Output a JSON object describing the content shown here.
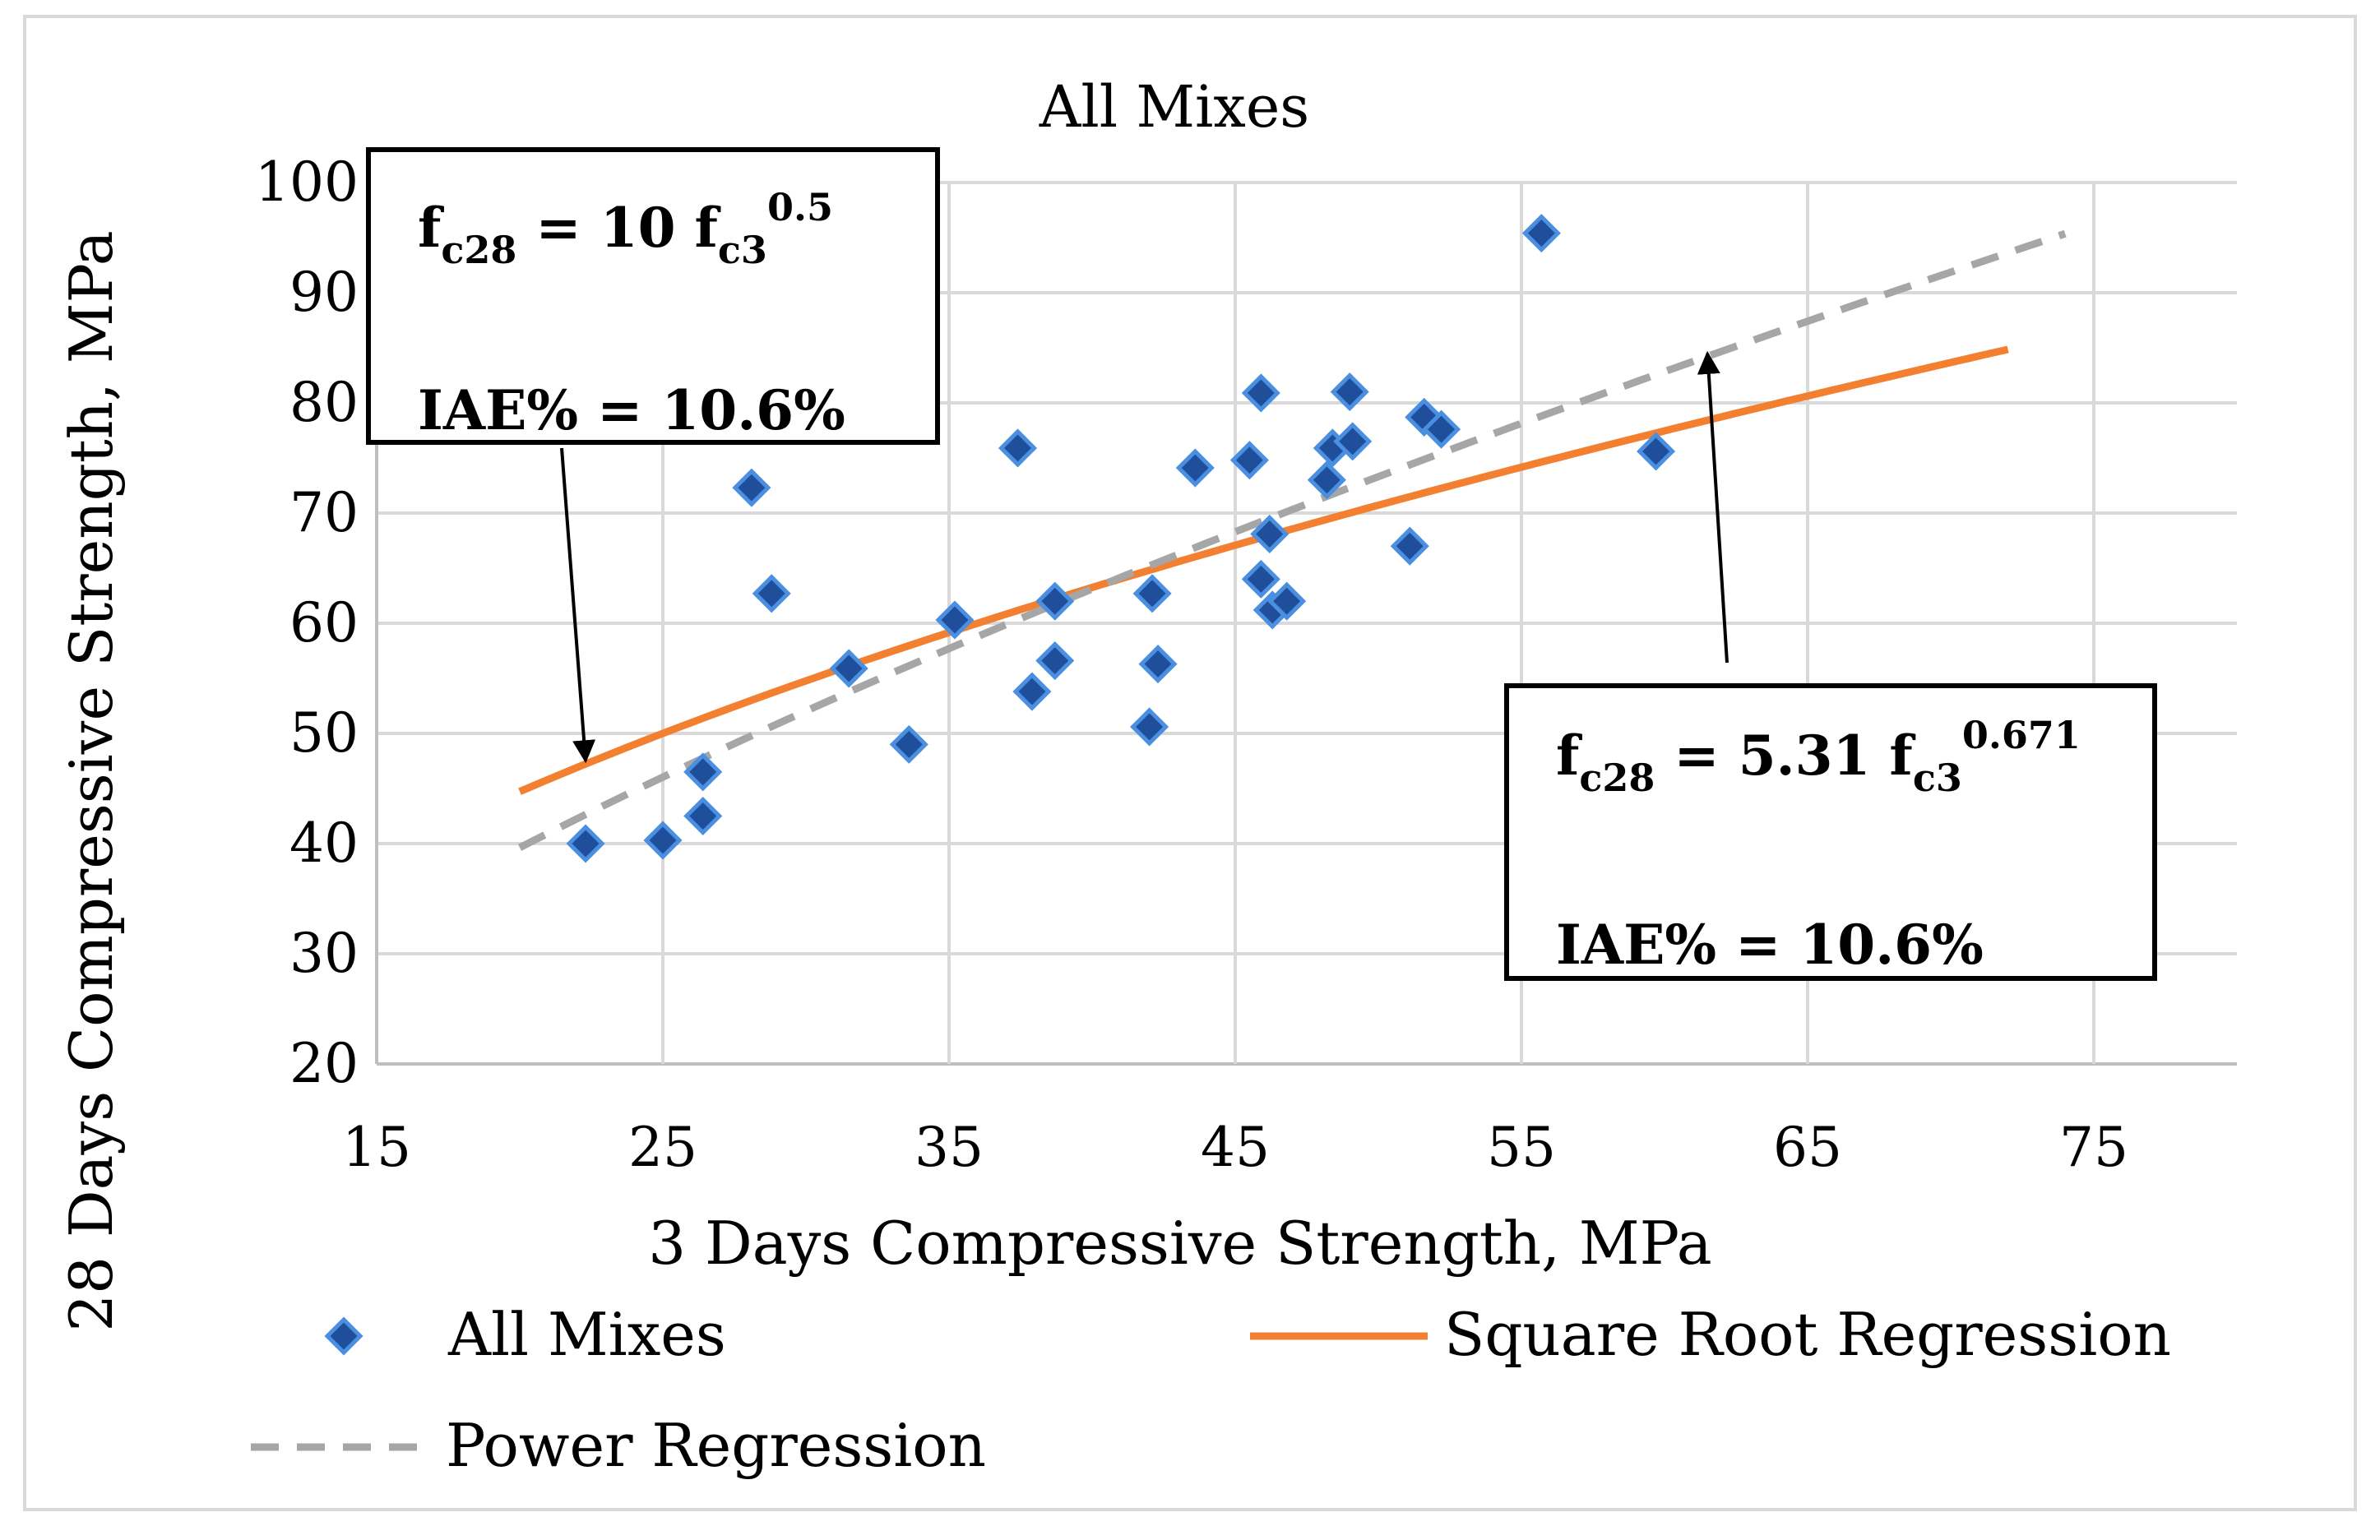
{
  "chart_data": {
    "type": "scatter",
    "title": "All Mixes",
    "xlabel": "3 Days Compressive Strength, MPa",
    "ylabel": "28 Days Compressive Strength, MPa",
    "xlim": [
      15,
      80
    ],
    "ylim": [
      20,
      100
    ],
    "xticks": [
      15,
      25,
      35,
      45,
      55,
      65,
      75
    ],
    "yticks": [
      20,
      30,
      40,
      50,
      60,
      70,
      80,
      90,
      100
    ],
    "grid": true,
    "series": [
      {
        "name": "All Mixes",
        "kind": "scatter",
        "color": "#2e5fa8",
        "points": [
          [
            22.3,
            40.0
          ],
          [
            25.0,
            40.3
          ],
          [
            26.4,
            42.5
          ],
          [
            26.4,
            46.5
          ],
          [
            28.1,
            72.3
          ],
          [
            28.8,
            62.7
          ],
          [
            31.5,
            55.9
          ],
          [
            33.6,
            49.0
          ],
          [
            35.2,
            60.3
          ],
          [
            37.4,
            75.9
          ],
          [
            37.9,
            53.8
          ],
          [
            38.7,
            62.0
          ],
          [
            38.7,
            56.6
          ],
          [
            42.0,
            50.6
          ],
          [
            42.1,
            62.7
          ],
          [
            42.3,
            56.3
          ],
          [
            43.6,
            74.1
          ],
          [
            45.5,
            74.8
          ],
          [
            45.9,
            80.9
          ],
          [
            45.9,
            64.0
          ],
          [
            46.2,
            68.1
          ],
          [
            46.3,
            61.2
          ],
          [
            46.8,
            62.0
          ],
          [
            48.2,
            73.0
          ],
          [
            48.4,
            75.9
          ],
          [
            49.0,
            81.0
          ],
          [
            49.1,
            76.5
          ],
          [
            51.1,
            67.0
          ],
          [
            51.6,
            78.7
          ],
          [
            52.2,
            77.6
          ],
          [
            55.7,
            95.4
          ],
          [
            59.7,
            75.6
          ]
        ]
      },
      {
        "name": "Square Root Regression",
        "kind": "line",
        "color": "#f28030",
        "dash": "solid",
        "equation": "y = 10 x^0.5",
        "coef": 10,
        "exp": 0.5,
        "xrange": [
          20,
          72
        ]
      },
      {
        "name": "Power Regression",
        "kind": "line",
        "color": "#a6a6a6",
        "dash": "dashed",
        "equation": "y = 5.31 x^0.671",
        "coef": 5.31,
        "exp": 0.671,
        "xrange": [
          20,
          74
        ]
      }
    ],
    "annotations": [
      {
        "id": "left",
        "line1": {
          "lhs": "f",
          "lhs_sub": "c28",
          "eq": " = 10 f",
          "rhs_sub": "c3",
          "sup": "0.5"
        },
        "line2": "IAE% = 10.6%",
        "arrow_to": [
          22.3,
          47.5
        ]
      },
      {
        "id": "right",
        "line1": {
          "lhs": "f",
          "lhs_sub": "c28",
          "eq": " = 5.31 f",
          "rhs_sub": "c3",
          "sup": "0.671"
        },
        "line2": "IAE% = 10.6%",
        "arrow_to": [
          61.5,
          84.5
        ]
      }
    ],
    "legend": {
      "placement": "bottom",
      "entries": [
        "All Mixes",
        "Square Root Regression",
        "Power Regression"
      ]
    }
  }
}
